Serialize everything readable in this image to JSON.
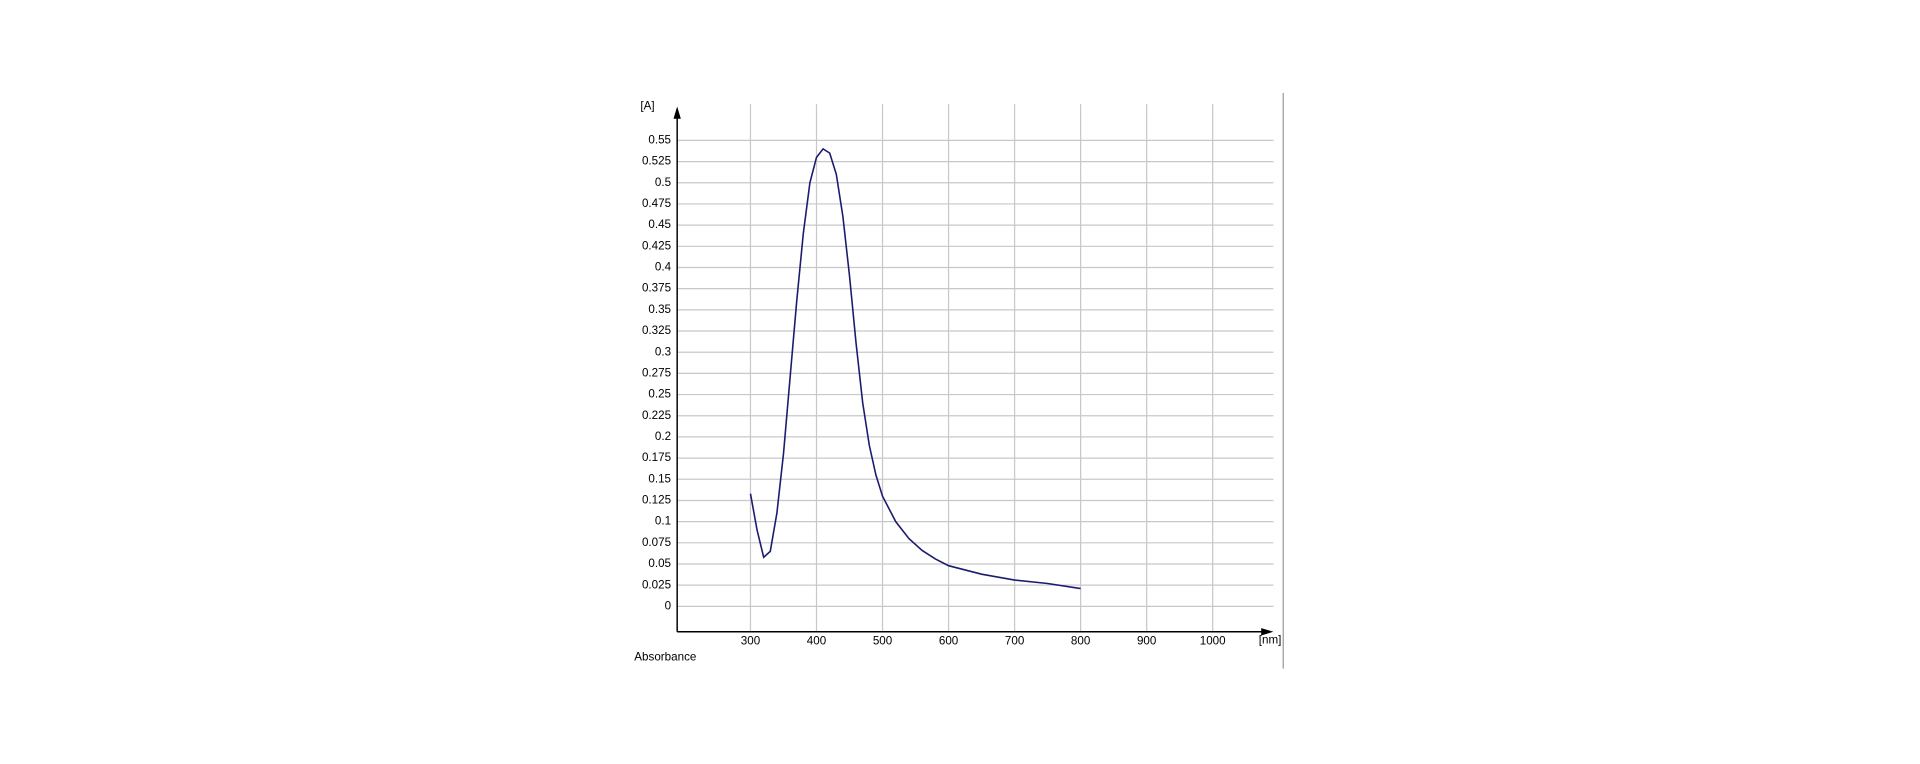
{
  "chart_data": {
    "type": "line",
    "y_unit_label": "[A]",
    "x_unit_label": "[nm]",
    "y_axis_title": "Absorbance",
    "x": [
      300,
      310,
      320,
      330,
      340,
      350,
      360,
      370,
      380,
      390,
      400,
      410,
      420,
      430,
      440,
      450,
      460,
      470,
      480,
      490,
      500,
      520,
      540,
      560,
      580,
      600,
      650,
      700,
      750,
      800
    ],
    "series": [
      {
        "name": "Absorbance",
        "color": "#1c1c6e",
        "values": [
          0.133,
          0.09,
          0.058,
          0.065,
          0.11,
          0.18,
          0.27,
          0.36,
          0.44,
          0.5,
          0.53,
          0.54,
          0.535,
          0.51,
          0.46,
          0.39,
          0.31,
          0.24,
          0.19,
          0.155,
          0.13,
          0.1,
          0.08,
          0.066,
          0.056,
          0.048,
          0.038,
          0.031,
          0.027,
          0.021
        ]
      }
    ],
    "xlim": [
      189,
      1092
    ],
    "ylim": [
      -0.03,
      0.59
    ],
    "xticks": [
      300,
      400,
      500,
      600,
      700,
      800,
      900,
      1000
    ],
    "yticks": [
      0,
      0.025,
      0.05,
      0.075,
      0.1,
      0.125,
      0.15,
      0.175,
      0.2,
      0.225,
      0.25,
      0.275,
      0.3,
      0.325,
      0.35,
      0.375,
      0.4,
      0.425,
      0.45,
      0.475,
      0.5,
      0.525,
      0.55
    ],
    "grid": true
  }
}
